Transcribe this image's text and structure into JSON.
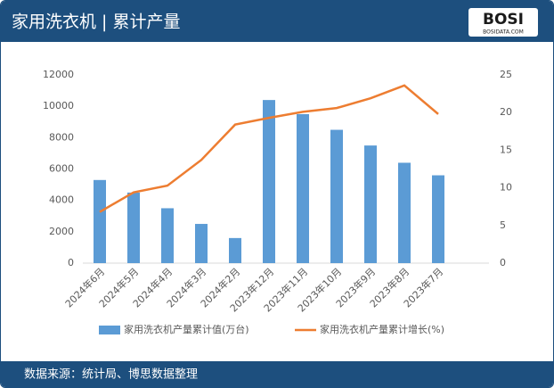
{
  "header": {
    "title": "家用洗衣机 | 累计产量"
  },
  "logo": {
    "text": "BOSI",
    "subtext": "BOSIDATA.COM"
  },
  "chart_data": {
    "type": "bar-line",
    "categories": [
      "2024年6月",
      "2024年5月",
      "2024年4月",
      "2024年3月",
      "2024年2月",
      "2023年12月",
      "2023年11月",
      "2023年10月",
      "2023年9月",
      "2023年8月",
      "2023年7月",
      null
    ],
    "series": [
      {
        "name": "家用洗衣机产量累计值(万台)",
        "color": "#5b9bd5",
        "type": "bar",
        "values": [
          5300,
          4500,
          3500,
          2500,
          1600,
          10400,
          9500,
          8500,
          7500,
          6400,
          5600,
          null
        ]
      },
      {
        "name": "家用洗衣机产量累计增长(%)",
        "color": "#ed7d31",
        "type": "line",
        "axis": "y2",
        "values": [
          6.8,
          9.4,
          10.3,
          13.7,
          18.4,
          19.3,
          20.1,
          20.6,
          21.9,
          23.6,
          19.8,
          null
        ]
      }
    ],
    "ylim": [
      0,
      12000
    ],
    "yticks": [
      0,
      2000,
      4000,
      6000,
      8000,
      10000,
      12000
    ],
    "y2lim": [
      0,
      25
    ],
    "y2ticks": [
      0,
      5,
      10,
      15,
      20,
      25
    ],
    "legend": "bottom"
  },
  "footer": {
    "text": "数据来源：统计局、博思数据整理"
  }
}
